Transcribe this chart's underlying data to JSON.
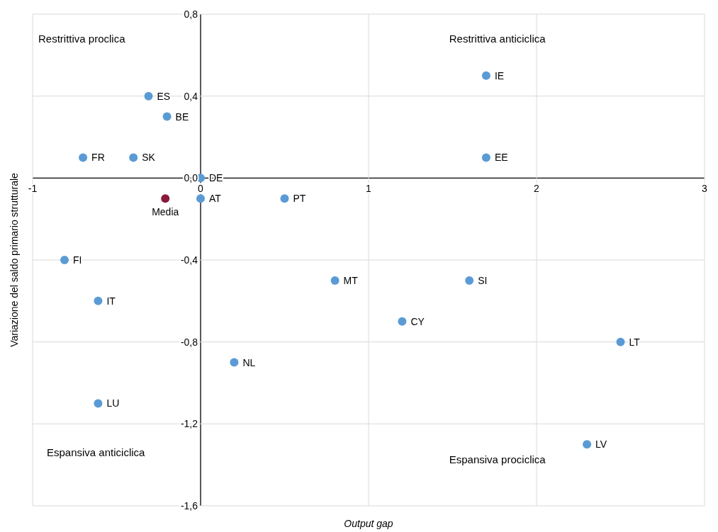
{
  "chart_data": {
    "type": "scatter",
    "xlabel": "Output gap",
    "ylabel": "Variazione del saldo primario strutturale",
    "xlim": [
      -1,
      3
    ],
    "xticks": [
      -1,
      0,
      1,
      2,
      3
    ],
    "ylim": [
      -1.6,
      0.8
    ],
    "yticks": [
      {
        "value": -1.6,
        "label": "-1,6"
      },
      {
        "value": -1.2,
        "label": "-1,2"
      },
      {
        "value": -0.8,
        "label": "-0,8"
      },
      {
        "value": -0.4,
        "label": "-0,4"
      },
      {
        "value": 0,
        "label": "0,0"
      },
      {
        "value": 0.4,
        "label": "0,4"
      },
      {
        "value": 0.8,
        "label": "0,8"
      }
    ],
    "grid": true,
    "marker": "circle",
    "annotations": [
      "Restrittiva proclica",
      "Restrittiva anticiclica",
      "Espansiva anticiclica",
      "Espansiva prociclica"
    ],
    "series": [
      {
        "name": "ES",
        "color": "#5b9bd5",
        "x": [
          -0.31
        ],
        "values": [
          0.4
        ]
      },
      {
        "name": "BE",
        "color": "#5b9bd5",
        "x": [
          -0.2
        ],
        "values": [
          0.3
        ]
      },
      {
        "name": "FR",
        "color": "#5b9bd5",
        "x": [
          -0.7
        ],
        "values": [
          0.1
        ]
      },
      {
        "name": "SK",
        "color": "#5b9bd5",
        "x": [
          -0.4
        ],
        "values": [
          0.1
        ]
      },
      {
        "name": "DE",
        "color": "#5b9bd5",
        "x": [
          0
        ],
        "values": [
          0
        ]
      },
      {
        "name": "AT",
        "color": "#5b9bd5",
        "x": [
          0
        ],
        "values": [
          -0.1
        ]
      },
      {
        "name": "PT",
        "color": "#5b9bd5",
        "x": [
          0.5
        ],
        "values": [
          -0.1
        ]
      },
      {
        "name": "Media",
        "color": "#8b1a3a",
        "x": [
          -0.21
        ],
        "values": [
          -0.1
        ]
      },
      {
        "name": "IE",
        "color": "#5b9bd5",
        "x": [
          1.7
        ],
        "values": [
          0.5
        ]
      },
      {
        "name": "EE",
        "color": "#5b9bd5",
        "x": [
          1.7
        ],
        "values": [
          0.1
        ]
      },
      {
        "name": "FI",
        "color": "#5b9bd5",
        "x": [
          -0.81
        ],
        "values": [
          -0.4
        ]
      },
      {
        "name": "IT",
        "color": "#5b9bd5",
        "x": [
          -0.61
        ],
        "values": [
          -0.6
        ]
      },
      {
        "name": "LU",
        "color": "#5b9bd5",
        "x": [
          -0.61
        ],
        "values": [
          -1.1
        ]
      },
      {
        "name": "MT",
        "color": "#5b9bd5",
        "x": [
          0.8
        ],
        "values": [
          -0.5
        ]
      },
      {
        "name": "SI",
        "color": "#5b9bd5",
        "x": [
          1.6
        ],
        "values": [
          -0.5
        ]
      },
      {
        "name": "CY",
        "color": "#5b9bd5",
        "x": [
          1.2
        ],
        "values": [
          -0.7
        ]
      },
      {
        "name": "LT",
        "color": "#5b9bd5",
        "x": [
          2.5
        ],
        "values": [
          -0.8
        ]
      },
      {
        "name": "NL",
        "color": "#5b9bd5",
        "x": [
          0.2
        ],
        "values": [
          -0.9
        ]
      },
      {
        "name": "LV",
        "color": "#5b9bd5",
        "x": [
          2.3
        ],
        "values": [
          -1.3
        ]
      }
    ]
  }
}
